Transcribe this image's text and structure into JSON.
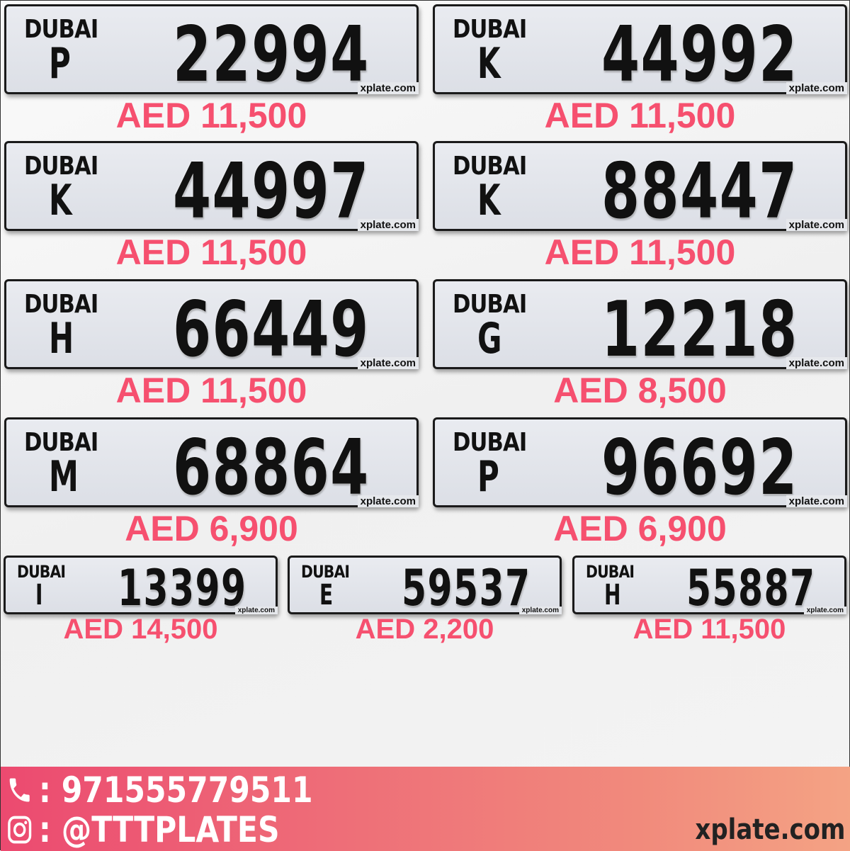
{
  "plates": [
    {
      "emirate": "DUBAI",
      "letter": "P",
      "number": "22994",
      "watermark": "xplate.com",
      "price": "AED 11,500"
    },
    {
      "emirate": "DUBAI",
      "letter": "K",
      "number": "44992",
      "watermark": "xplate.com",
      "price": "AED 11,500"
    },
    {
      "emirate": "DUBAI",
      "letter": "K",
      "number": "44997",
      "watermark": "xplate.com",
      "price": "AED 11,500"
    },
    {
      "emirate": "DUBAI",
      "letter": "K",
      "number": "88447",
      "watermark": "xplate.com",
      "price": "AED 11,500"
    },
    {
      "emirate": "DUBAI",
      "letter": "H",
      "number": "66449",
      "watermark": "xplate.com",
      "price": "AED 11,500"
    },
    {
      "emirate": "DUBAI",
      "letter": "G",
      "number": "12218",
      "watermark": "xplate.com",
      "price": "AED 8,500"
    },
    {
      "emirate": "DUBAI",
      "letter": "M",
      "number": "68864",
      "watermark": "xplate.com",
      "price": "AED 6,900"
    },
    {
      "emirate": "DUBAI",
      "letter": "P",
      "number": "96692",
      "watermark": "xplate.com",
      "price": "AED 6,900"
    },
    {
      "emirate": "DUBAI",
      "letter": "I",
      "number": "13399",
      "watermark": "xplate.com",
      "price": "AED 14,500"
    },
    {
      "emirate": "DUBAI",
      "letter": "E",
      "number": "59537",
      "watermark": "xplate.com",
      "price": "AED 2,200"
    },
    {
      "emirate": "DUBAI",
      "letter": "H",
      "number": "55887",
      "watermark": "xplate.com",
      "price": "AED 11,500"
    }
  ],
  "footer": {
    "phone_icon": "phone-icon",
    "phone": ": 971555779511",
    "instagram_icon": "instagram-icon",
    "instagram": ": @TTTPLATES",
    "site": "xplate.com"
  },
  "colors": {
    "price": "#f6506f",
    "footer_start": "#ec4a70",
    "footer_end": "#f4a384"
  }
}
